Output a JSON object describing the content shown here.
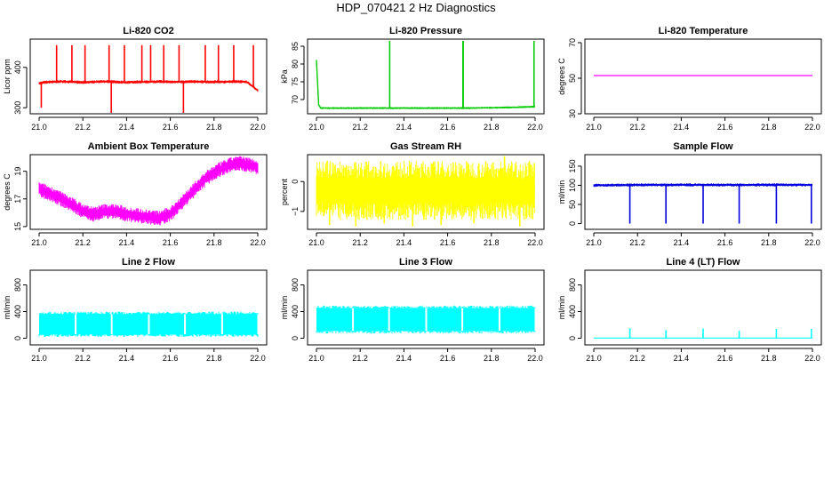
{
  "title": "HDP_070421  2 Hz Diagnostics",
  "chart_data": [
    {
      "type": "line",
      "title": "Li-820 CO2",
      "ylabel": "Licor ppm",
      "color": "#ff0000",
      "xlim": [
        21.0,
        22.0
      ],
      "ylim": [
        285,
        470
      ],
      "x_ticks": [
        "21.0",
        "21.2",
        "21.4",
        "21.6",
        "21.8",
        "22.0"
      ],
      "y_ticks": [
        {
          "v": 300,
          "t": "300"
        },
        {
          "v": 400,
          "t": "400"
        }
      ],
      "series": [
        {
          "x": [
            21.0,
            21.02,
            21.05,
            21.1,
            21.15,
            21.2,
            21.25,
            21.3,
            21.35,
            21.4,
            21.45,
            21.5,
            21.55,
            21.6,
            21.65,
            21.7,
            21.75,
            21.8,
            21.85,
            21.9,
            21.95,
            22.0
          ],
          "y": [
            360,
            363,
            364,
            365,
            364,
            363,
            364,
            365,
            364,
            363,
            364,
            364,
            365,
            364,
            364,
            365,
            364,
            364,
            364,
            365,
            364,
            343
          ],
          "band": 4,
          "spikes": [
            {
              "x": 21.08,
              "y": 455
            },
            {
              "x": 21.15,
              "y": 455
            },
            {
              "x": 21.21,
              "y": 455
            },
            {
              "x": 21.32,
              "y": 455
            },
            {
              "x": 21.39,
              "y": 455
            },
            {
              "x": 21.47,
              "y": 455
            },
            {
              "x": 21.51,
              "y": 455
            },
            {
              "x": 21.57,
              "y": 455
            },
            {
              "x": 21.64,
              "y": 455
            },
            {
              "x": 21.76,
              "y": 455
            },
            {
              "x": 21.82,
              "y": 455
            },
            {
              "x": 21.89,
              "y": 455
            },
            {
              "x": 21.98,
              "y": 455
            },
            {
              "x": 21.33,
              "y": 285
            },
            {
              "x": 21.66,
              "y": 287
            },
            {
              "x": 21.01,
              "y": 300
            }
          ]
        }
      ]
    },
    {
      "type": "line",
      "title": "Li-820 Pressure",
      "ylabel": "kPa",
      "color": "#00cc00",
      "xlim": [
        21.0,
        22.0
      ],
      "ylim": [
        66,
        87
      ],
      "x_ticks": [
        "21.0",
        "21.2",
        "21.4",
        "21.6",
        "21.8",
        "22.0"
      ],
      "y_ticks": [
        {
          "v": 70,
          "t": "70"
        },
        {
          "v": 75,
          "t": "75"
        },
        {
          "v": 80,
          "t": "80"
        },
        {
          "v": 85,
          "t": "85"
        }
      ],
      "series": [
        {
          "x": [
            21.0,
            21.01,
            21.02,
            21.1,
            21.2,
            21.3,
            21.4,
            21.5,
            21.6,
            21.7,
            21.8,
            21.9,
            22.0
          ],
          "y": [
            81,
            68.5,
            67.6,
            67.6,
            67.6,
            67.6,
            67.6,
            67.6,
            67.6,
            67.6,
            67.7,
            67.8,
            68.0
          ],
          "band": 0.3,
          "spikes": [
            {
              "x": 21.335,
              "y": 86.5
            },
            {
              "x": 21.67,
              "y": 86.5
            },
            {
              "x": 21.671,
              "y": 86.5
            },
            {
              "x": 21.995,
              "y": 86.5
            }
          ]
        }
      ]
    },
    {
      "type": "line",
      "title": "Li-820 Temperature",
      "ylabel": "degrees C",
      "color": "#ff00ff",
      "xlim": [
        21.0,
        22.0
      ],
      "ylim": [
        30,
        72
      ],
      "x_ticks": [
        "21.0",
        "21.2",
        "21.4",
        "21.6",
        "21.8",
        "22.0"
      ],
      "y_ticks": [
        {
          "v": 30,
          "t": "30"
        },
        {
          "v": 50,
          "t": "50"
        },
        {
          "v": 70,
          "t": "70"
        }
      ],
      "series": [
        {
          "x": [
            21.0,
            22.0
          ],
          "y": [
            51.5,
            51.5
          ],
          "band": 0,
          "spikes": []
        }
      ]
    },
    {
      "type": "line",
      "title": "Ambient Box Temperature",
      "ylabel": "degrees C",
      "color": "#ff00ff",
      "xlim": [
        21.0,
        22.0
      ],
      "ylim": [
        14.8,
        20.2
      ],
      "x_ticks": [
        "21.0",
        "21.2",
        "21.4",
        "21.6",
        "21.8",
        "22.0"
      ],
      "y_ticks": [
        {
          "v": 15,
          "t": "15"
        },
        {
          "v": 17,
          "t": "17"
        },
        {
          "v": 19,
          "t": "19"
        }
      ],
      "series": [
        {
          "x": [
            21.0,
            21.05,
            21.1,
            21.15,
            21.2,
            21.25,
            21.3,
            21.35,
            21.4,
            21.45,
            21.5,
            21.55,
            21.6,
            21.65,
            21.7,
            21.75,
            21.8,
            21.85,
            21.9,
            21.95,
            22.0
          ],
          "y": [
            17.7,
            17.4,
            17.0,
            16.6,
            16.1,
            15.9,
            16.1,
            16.1,
            15.9,
            15.8,
            15.7,
            15.6,
            15.9,
            16.7,
            17.5,
            18.3,
            18.9,
            19.3,
            19.6,
            19.5,
            19.3
          ],
          "band": 0.55,
          "spikes": []
        }
      ]
    },
    {
      "type": "line",
      "title": "Gas Stream RH",
      "ylabel": "percent",
      "color": "#ffff00",
      "xlim": [
        21.0,
        22.0
      ],
      "ylim": [
        -1.6,
        0.9
      ],
      "x_ticks": [
        "21.0",
        "21.2",
        "21.4",
        "21.6",
        "21.8",
        "22.0"
      ],
      "y_ticks": [
        {
          "v": -1,
          "t": "−1"
        },
        {
          "v": 0,
          "t": "0"
        }
      ],
      "series": [
        {
          "x": [
            21.0,
            21.2,
            21.4,
            21.6,
            21.8,
            22.0
          ],
          "y": [
            -0.3,
            -0.3,
            -0.3,
            -0.3,
            -0.3,
            -0.3
          ],
          "band": 1.0,
          "spikes": [
            {
              "x": 21.06,
              "y": -1.45
            },
            {
              "x": 21.18,
              "y": -1.5
            },
            {
              "x": 21.31,
              "y": -1.4
            },
            {
              "x": 21.44,
              "y": -1.5
            },
            {
              "x": 21.57,
              "y": -1.45
            },
            {
              "x": 21.72,
              "y": -1.4
            },
            {
              "x": 21.86,
              "y": 0.85
            },
            {
              "x": 21.93,
              "y": -1.5
            }
          ]
        }
      ]
    },
    {
      "type": "line",
      "title": "Sample Flow",
      "ylabel": "ml/min",
      "color": "#0000dd",
      "xlim": [
        21.0,
        22.0
      ],
      "ylim": [
        -15,
        180
      ],
      "x_ticks": [
        "21.0",
        "21.2",
        "21.4",
        "21.6",
        "21.8",
        "22.0"
      ],
      "y_ticks": [
        {
          "v": 0,
          "t": "0"
        },
        {
          "v": 50,
          "t": "50"
        },
        {
          "v": 100,
          "t": "100"
        },
        {
          "v": 150,
          "t": "150"
        }
      ],
      "series": [
        {
          "x": [
            21.0,
            21.2,
            21.4,
            21.6,
            21.8,
            22.0
          ],
          "y": [
            100,
            101,
            101,
            101,
            101,
            101
          ],
          "band": 4,
          "spikes": [
            {
              "x": 21.165,
              "y": 0
            },
            {
              "x": 21.33,
              "y": 0
            },
            {
              "x": 21.5,
              "y": 0
            },
            {
              "x": 21.665,
              "y": 0
            },
            {
              "x": 21.835,
              "y": 0
            },
            {
              "x": 21.995,
              "y": 0
            }
          ]
        }
      ]
    },
    {
      "type": "area",
      "title": "Line 2 Flow",
      "ylabel": "ml/min",
      "color": "#00ffff",
      "xlim": [
        21.0,
        22.0
      ],
      "ylim": [
        -100,
        1020
      ],
      "x_ticks": [
        "21.0",
        "21.2",
        "21.4",
        "21.6",
        "21.8",
        "22.0"
      ],
      "y_ticks": [
        {
          "v": 0,
          "t": "0"
        },
        {
          "v": 400,
          "t": "400"
        },
        {
          "v": 800,
          "t": "800"
        }
      ],
      "series": [
        {
          "x": [
            21.0,
            22.0
          ],
          "low": 60,
          "high": 360,
          "gaps": [
            21.165,
            21.33,
            21.5,
            21.665,
            21.835
          ]
        }
      ]
    },
    {
      "type": "area",
      "title": "Line 3 Flow",
      "ylabel": "ml/min",
      "color": "#00ffff",
      "xlim": [
        21.0,
        22.0
      ],
      "ylim": [
        -100,
        1020
      ],
      "x_ticks": [
        "21.0",
        "21.2",
        "21.4",
        "21.6",
        "21.8",
        "22.0"
      ],
      "y_ticks": [
        {
          "v": 0,
          "t": "0"
        },
        {
          "v": 400,
          "t": "400"
        },
        {
          "v": 800,
          "t": "800"
        }
      ],
      "series": [
        {
          "x": [
            21.0,
            22.0
          ],
          "low": 110,
          "high": 450,
          "gaps": [
            21.165,
            21.33,
            21.5,
            21.665,
            21.835
          ]
        }
      ]
    },
    {
      "type": "line",
      "title": "Line 4 (LT) Flow",
      "ylabel": "ml/min",
      "color": "#00ffff",
      "xlim": [
        21.0,
        22.0
      ],
      "ylim": [
        -100,
        1020
      ],
      "x_ticks": [
        "21.0",
        "21.2",
        "21.4",
        "21.6",
        "21.8",
        "22.0"
      ],
      "y_ticks": [
        {
          "v": 0,
          "t": "0"
        },
        {
          "v": 400,
          "t": "400"
        },
        {
          "v": 800,
          "t": "800"
        }
      ],
      "series": [
        {
          "x": [
            21.0,
            22.0
          ],
          "y": [
            3,
            3
          ],
          "band": 0,
          "spikes": [
            {
              "x": 21.165,
              "y": 150
            },
            {
              "x": 21.33,
              "y": 120
            },
            {
              "x": 21.5,
              "y": 145
            },
            {
              "x": 21.665,
              "y": 110
            },
            {
              "x": 21.835,
              "y": 140
            },
            {
              "x": 21.995,
              "y": 140
            }
          ]
        }
      ]
    }
  ]
}
